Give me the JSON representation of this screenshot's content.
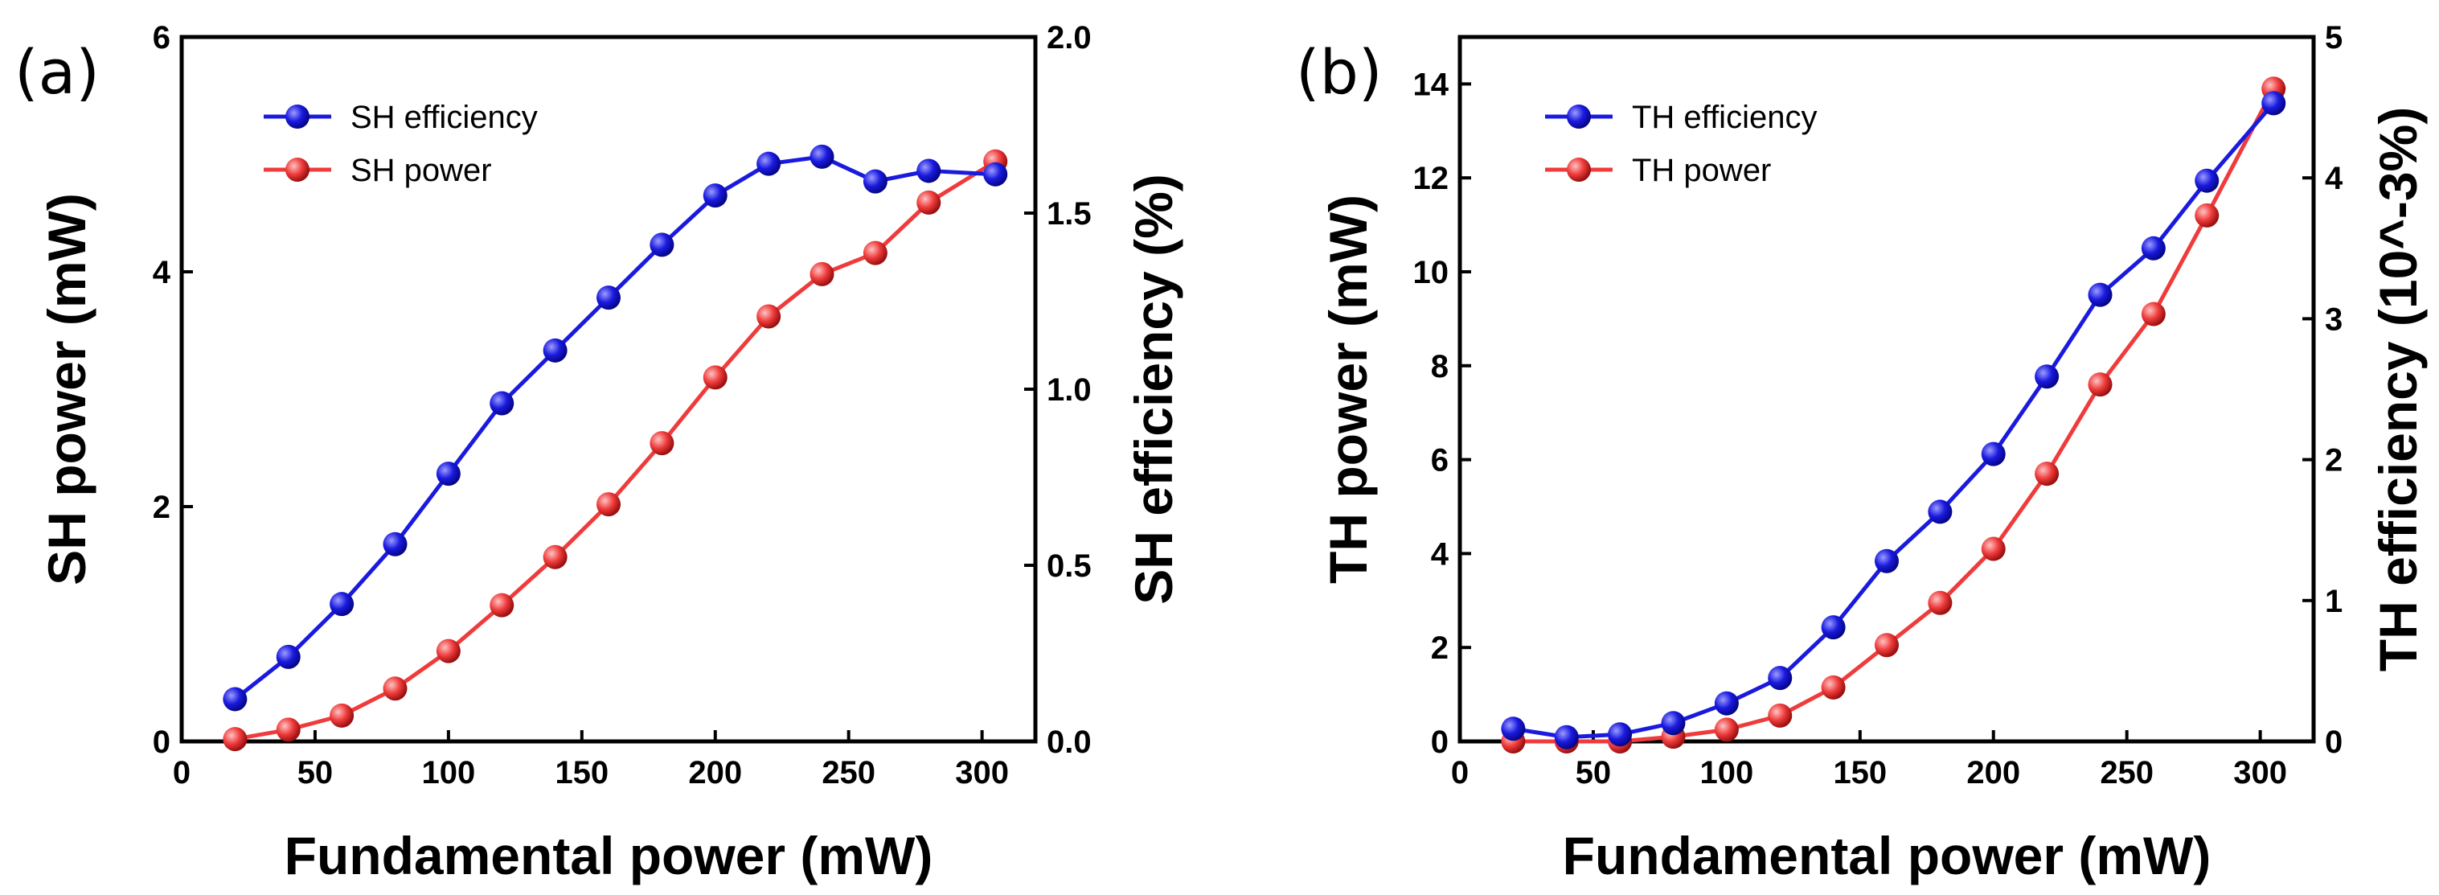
{
  "chart_data": [
    {
      "type": "line",
      "panel_label": "(a)",
      "x": [
        20,
        40,
        60,
        80,
        100,
        120,
        140,
        160,
        180,
        200,
        220,
        240,
        260,
        280,
        305
      ],
      "xlabel": "Fundamental power (mW)",
      "xlim": [
        0,
        320
      ],
      "xticks": [
        0,
        50,
        100,
        150,
        200,
        250,
        300
      ],
      "ylabel": "SH power (mW)",
      "ylim": [
        0,
        6
      ],
      "yticks": [
        0,
        2,
        4,
        6
      ],
      "y2label": "SH efficiency (%)",
      "y2lim": [
        0,
        2.0
      ],
      "y2ticks": [
        "0.0",
        "0.5",
        "1.0",
        "1.5",
        "2.0"
      ],
      "legend_position": "top-left",
      "grid": false,
      "series": [
        {
          "name": "SH efficiency",
          "axis": "right",
          "color": "#1a1adf",
          "values": [
            0.12,
            0.24,
            0.39,
            0.56,
            0.76,
            0.96,
            1.11,
            1.26,
            1.41,
            1.55,
            1.64,
            1.66,
            1.59,
            1.62,
            1.61
          ]
        },
        {
          "name": "SH power",
          "axis": "left",
          "color": "#ef3b3b",
          "values": [
            0.02,
            0.1,
            0.22,
            0.45,
            0.77,
            1.16,
            1.57,
            2.02,
            2.54,
            3.1,
            3.62,
            3.98,
            4.16,
            4.59,
            4.94
          ]
        }
      ]
    },
    {
      "type": "line",
      "panel_label": "(b)",
      "x": [
        20,
        40,
        60,
        80,
        100,
        120,
        140,
        160,
        180,
        200,
        220,
        240,
        260,
        280,
        305
      ],
      "xlabel": "Fundamental power (mW)",
      "xlim": [
        0,
        320
      ],
      "xticks": [
        0,
        50,
        100,
        150,
        200,
        250,
        300
      ],
      "ylabel": "TH power (mW)",
      "ylim": [
        0,
        15
      ],
      "yticks": [
        0,
        2,
        4,
        6,
        8,
        10,
        12,
        14
      ],
      "y2label": "TH efficiency (10^-3%)",
      "y2lim": [
        0,
        5
      ],
      "y2ticks": [
        "0",
        "1",
        "2",
        "3",
        "4",
        "5"
      ],
      "legend_position": "top-left",
      "grid": false,
      "series": [
        {
          "name": "TH efficiency",
          "axis": "right",
          "color": "#1a1adf",
          "values": [
            0.09,
            0.03,
            0.05,
            0.13,
            0.27,
            0.45,
            0.81,
            1.28,
            1.63,
            2.04,
            2.59,
            3.17,
            3.5,
            3.98,
            4.53
          ]
        },
        {
          "name": "TH power",
          "axis": "left",
          "color": "#ef3b3b",
          "values": [
            0.0,
            0.0,
            0.0,
            0.1,
            0.25,
            0.55,
            1.15,
            2.05,
            2.95,
            4.1,
            5.7,
            7.6,
            9.1,
            11.2,
            13.9
          ]
        }
      ]
    }
  ]
}
